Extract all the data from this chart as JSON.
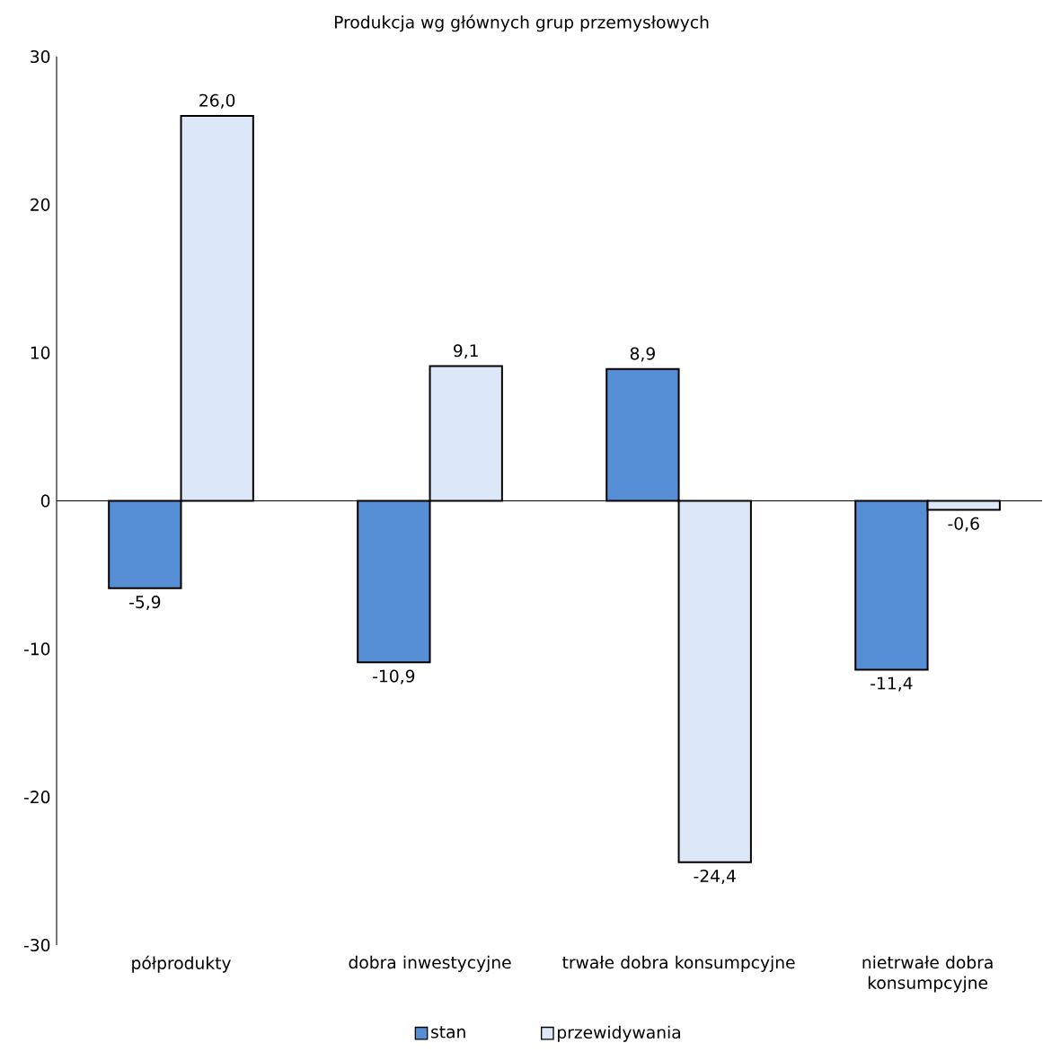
{
  "chart_data": {
    "type": "bar",
    "title": "Produkcja wg głównych grup przemysłowych",
    "categories": [
      "półprodukty",
      "dobra inwestycyjne",
      "trwałe dobra konsumpcyjne",
      "nietrwałe dobra konsumpcyjne"
    ],
    "series": [
      {
        "name": "stan",
        "color": "#558ed5",
        "values": [
          -5.9,
          -10.9,
          8.9,
          -11.4
        ],
        "value_labels": [
          "-5,9",
          "-10,9",
          "8,9",
          "-11,4"
        ]
      },
      {
        "name": "przewidywania",
        "color": "#dce8f7",
        "values": [
          26.0,
          9.1,
          -24.4,
          -0.6
        ],
        "value_labels": [
          "26,0",
          "9,1",
          "-24,4",
          "-0,6"
        ]
      }
    ],
    "ylim": [
      -30,
      30
    ],
    "yticks": [
      -30,
      -20,
      -10,
      0,
      10,
      20,
      30
    ],
    "legend": "bottom"
  }
}
